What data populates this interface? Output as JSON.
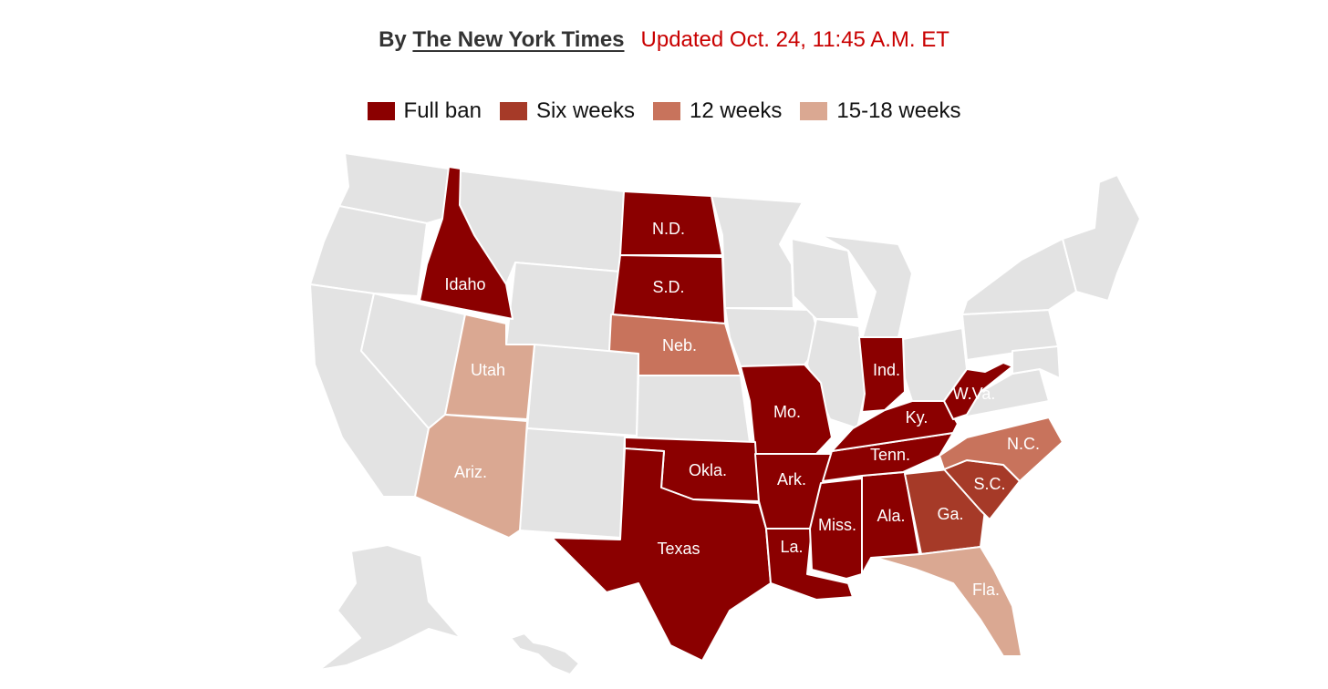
{
  "byline": {
    "prefix": "By",
    "author": "The New York Times",
    "updated": "Updated Oct. 24, 11:45 A.M. ET"
  },
  "legend": [
    {
      "label": "Full ban",
      "color": "#8b0000"
    },
    {
      "label": "Six weeks",
      "color": "#a63a28"
    },
    {
      "label": "12 weeks",
      "color": "#c8735c"
    },
    {
      "label": "15-18 weeks",
      "color": "#daa892"
    }
  ],
  "colors": {
    "no_ban": "#e3e3e3",
    "full_ban": "#8b0000",
    "six_weeks": "#a63a28",
    "twelve_weeks": "#c8735c",
    "fifteen_eighteen": "#daa892"
  },
  "states": [
    {
      "abbr": "ID",
      "label": "Idaho",
      "status": "Full ban"
    },
    {
      "abbr": "ND",
      "label": "N.D.",
      "status": "Full ban"
    },
    {
      "abbr": "SD",
      "label": "S.D.",
      "status": "Full ban"
    },
    {
      "abbr": "NE",
      "label": "Neb.",
      "status": "12 weeks"
    },
    {
      "abbr": "UT",
      "label": "Utah",
      "status": "15-18 weeks"
    },
    {
      "abbr": "AZ",
      "label": "Ariz.",
      "status": "15-18 weeks"
    },
    {
      "abbr": "MO",
      "label": "Mo.",
      "status": "Full ban"
    },
    {
      "abbr": "OK",
      "label": "Okla.",
      "status": "Full ban"
    },
    {
      "abbr": "TX",
      "label": "Texas",
      "status": "Full ban"
    },
    {
      "abbr": "AR",
      "label": "Ark.",
      "status": "Full ban"
    },
    {
      "abbr": "LA",
      "label": "La.",
      "status": "Full ban"
    },
    {
      "abbr": "MS",
      "label": "Miss.",
      "status": "Full ban"
    },
    {
      "abbr": "AL",
      "label": "Ala.",
      "status": "Full ban"
    },
    {
      "abbr": "TN",
      "label": "Tenn.",
      "status": "Full ban"
    },
    {
      "abbr": "KY",
      "label": "Ky.",
      "status": "Full ban"
    },
    {
      "abbr": "IN",
      "label": "Ind.",
      "status": "Full ban"
    },
    {
      "abbr": "WV",
      "label": "W.Va.",
      "status": "Full ban"
    },
    {
      "abbr": "GA",
      "label": "Ga.",
      "status": "Six weeks"
    },
    {
      "abbr": "SC",
      "label": "S.C.",
      "status": "Six weeks"
    },
    {
      "abbr": "NC",
      "label": "N.C.",
      "status": "12 weeks"
    },
    {
      "abbr": "FL",
      "label": "Fla.",
      "status": "15-18 weeks"
    }
  ]
}
